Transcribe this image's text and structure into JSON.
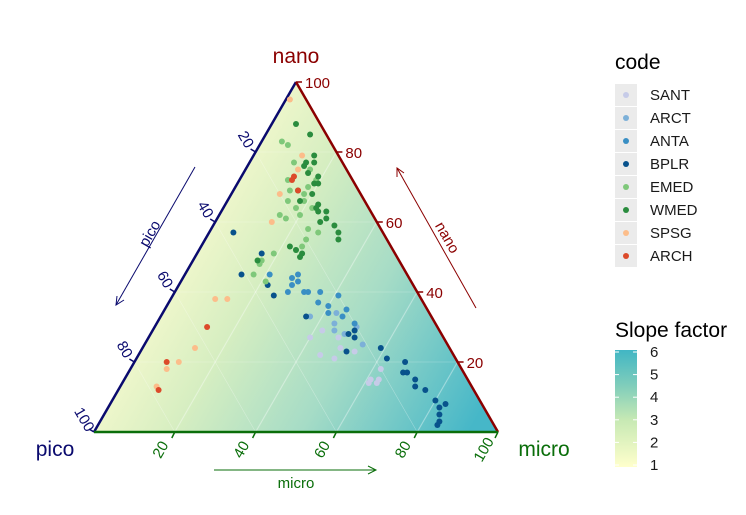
{
  "chart_data": {
    "type": "scatter",
    "subtype": "ternary",
    "background": "gradient filled contours of Slope factor",
    "axes": {
      "top": {
        "label": "nano",
        "color": "#8b0000",
        "ticks": [
          "20",
          "40",
          "60",
          "80",
          "100"
        ]
      },
      "left": {
        "label": "pico",
        "color": "#0a0a6e",
        "ticks": [
          "20",
          "40",
          "60",
          "80",
          "100"
        ]
      },
      "right": {
        "label": "micro",
        "color": "#0a6e0a",
        "ticks": [
          "20",
          "40",
          "60",
          "80",
          "100"
        ]
      }
    },
    "legend": {
      "title": "code",
      "position": "right",
      "entries": [
        {
          "name": "SANT",
          "color": "#c6cbe8"
        },
        {
          "name": "ARCT",
          "color": "#7cb0d8"
        },
        {
          "name": "ANTA",
          "color": "#3a8fc4"
        },
        {
          "name": "BPLR",
          "color": "#08528c"
        },
        {
          "name": "EMED",
          "color": "#7fc87a"
        },
        {
          "name": "WMED",
          "color": "#2a8c3e"
        },
        {
          "name": "SPSG",
          "color": "#fcbd8a"
        },
        {
          "name": "ARCH",
          "color": "#dc4a2a"
        }
      ]
    },
    "colorbar": {
      "title": "Slope factor",
      "min": 1,
      "max": 6,
      "ticks": [
        "1",
        "2",
        "3",
        "4",
        "5",
        "6"
      ],
      "low_color": "#ffffcc",
      "high_color": "#41b6c4"
    },
    "series": [
      {
        "name": "SANT",
        "points": [
          [
            27,
            33,
            40
          ],
          [
            29,
            29,
            42
          ],
          [
            22,
            33,
            45
          ],
          [
            24,
            27,
            49
          ],
          [
            27,
            26,
            47
          ],
          [
            21,
            30,
            49
          ],
          [
            23,
            24,
            53
          ],
          [
            15,
            24,
            61
          ],
          [
            14,
            23,
            63
          ],
          [
            18,
            20,
            62
          ],
          [
            15,
            22,
            63
          ],
          [
            14,
            25,
            61
          ]
        ]
      },
      {
        "name": "ARCT",
        "points": [
          [
            31,
            25,
            44
          ],
          [
            30,
            20,
            50
          ],
          [
            33,
            30,
            37
          ],
          [
            34,
            23,
            43
          ],
          [
            25,
            21,
            54
          ],
          [
            29,
            26,
            45
          ],
          [
            28,
            24,
            48
          ]
        ]
      },
      {
        "name": "ANTA",
        "points": [
          [
            42,
            30,
            28
          ],
          [
            45,
            34,
            21
          ],
          [
            40,
            32,
            28
          ],
          [
            45,
            27,
            28
          ],
          [
            40,
            28,
            32
          ],
          [
            44,
            29,
            27
          ],
          [
            40,
            27,
            33
          ],
          [
            43,
            28,
            29
          ],
          [
            36,
            24,
            40
          ],
          [
            40,
            24,
            36
          ],
          [
            33,
            22,
            45
          ],
          [
            35,
            20,
            45
          ],
          [
            39,
            20,
            41
          ],
          [
            31,
            20,
            49
          ],
          [
            37,
            26,
            37
          ],
          [
            34,
            25,
            41
          ]
        ]
      },
      {
        "name": "BPLR",
        "points": [
          [
            57,
            37,
            6
          ],
          [
            51,
            33,
            16
          ],
          [
            45,
            41,
            14
          ],
          [
            42,
            36,
            22
          ],
          [
            39,
            36,
            25
          ],
          [
            33,
            31,
            36
          ],
          [
            27,
            22,
            51
          ],
          [
            29,
            21,
            50
          ],
          [
            28,
            23,
            49
          ],
          [
            23,
            26,
            51
          ],
          [
            21,
            17,
            62
          ],
          [
            24,
            17,
            59
          ],
          [
            20,
            13,
            67
          ],
          [
            17,
            15,
            68
          ],
          [
            17,
            14,
            69
          ],
          [
            15,
            13,
            72
          ],
          [
            13,
            14,
            73
          ],
          [
            12,
            12,
            76
          ],
          [
            9,
            11,
            80
          ],
          [
            7,
            11,
            82
          ],
          [
            8,
            9,
            83
          ],
          [
            5,
            12,
            83
          ],
          [
            2,
            14,
            84
          ],
          [
            3,
            13,
            84
          ]
        ]
      },
      {
        "name": "EMED",
        "points": [
          [
            72,
            16,
            12
          ],
          [
            74,
            10,
            16
          ],
          [
            72,
            9,
            19
          ],
          [
            75,
            9,
            16
          ],
          [
            70,
            12,
            18
          ],
          [
            68,
            14,
            18
          ],
          [
            66,
            15,
            19
          ],
          [
            64,
            18,
            18
          ],
          [
            62,
            18,
            20
          ],
          [
            62,
            23,
            15
          ],
          [
            61,
            22,
            17
          ],
          [
            58,
            18,
            24
          ],
          [
            57,
            16,
            27
          ],
          [
            55,
            20,
            25
          ],
          [
            53,
            22,
            25
          ],
          [
            52,
            24,
            24
          ],
          [
            49,
            35,
            16
          ],
          [
            48,
            35,
            17
          ],
          [
            49,
            34,
            17
          ],
          [
            45,
            38,
            17
          ],
          [
            43,
            36,
            21
          ],
          [
            83,
            12,
            5
          ],
          [
            82,
            11,
            7
          ],
          [
            66,
            19,
            15
          ],
          [
            64,
            14,
            22
          ],
          [
            77,
            12,
            11
          ],
          [
            69,
            17,
            14
          ],
          [
            51,
            30,
            19
          ]
        ]
      },
      {
        "name": "WMED",
        "points": [
          [
            88,
            6,
            6
          ],
          [
            85,
            4,
            11
          ],
          [
            79,
            6,
            15
          ],
          [
            77,
            7,
            16
          ],
          [
            77,
            9,
            14
          ],
          [
            76,
            10,
            14
          ],
          [
            74,
            10,
            16
          ],
          [
            73,
            8,
            19
          ],
          [
            71,
            10,
            19
          ],
          [
            71,
            9,
            20
          ],
          [
            69,
            15,
            16
          ],
          [
            68,
            12,
            20
          ],
          [
            66,
            16,
            18
          ],
          [
            64,
            13,
            23
          ],
          [
            63,
            13,
            24
          ],
          [
            65,
            12,
            23
          ],
          [
            63,
            11,
            26
          ],
          [
            61,
            12,
            27
          ],
          [
            60,
            14,
            26
          ],
          [
            59,
            11,
            30
          ],
          [
            53,
            25,
            22
          ],
          [
            51,
            23,
            26
          ],
          [
            50,
            24,
            26
          ],
          [
            57,
            11,
            32
          ],
          [
            55,
            12,
            33
          ],
          [
            52,
            24,
            24
          ],
          [
            49,
            35,
            16
          ]
        ]
      },
      {
        "name": "SPSG",
        "points": [
          [
            95,
            4,
            1
          ],
          [
            75,
            12,
            13
          ],
          [
            79,
            9,
            12
          ],
          [
            68,
            20,
            12
          ],
          [
            60,
            26,
            14
          ],
          [
            38,
            51,
            11
          ],
          [
            38,
            48,
            14
          ],
          [
            24,
            63,
            13
          ],
          [
            18,
            73,
            9
          ],
          [
            20,
            69,
            11
          ],
          [
            13,
            78,
            9
          ]
        ]
      },
      {
        "name": "ARCH",
        "points": [
          [
            72,
            15,
            13
          ],
          [
            69,
            15,
            16
          ],
          [
            73,
            14,
            13
          ],
          [
            30,
            57,
            13
          ],
          [
            20,
            72,
            8
          ],
          [
            12,
            78,
            10
          ]
        ]
      }
    ]
  }
}
